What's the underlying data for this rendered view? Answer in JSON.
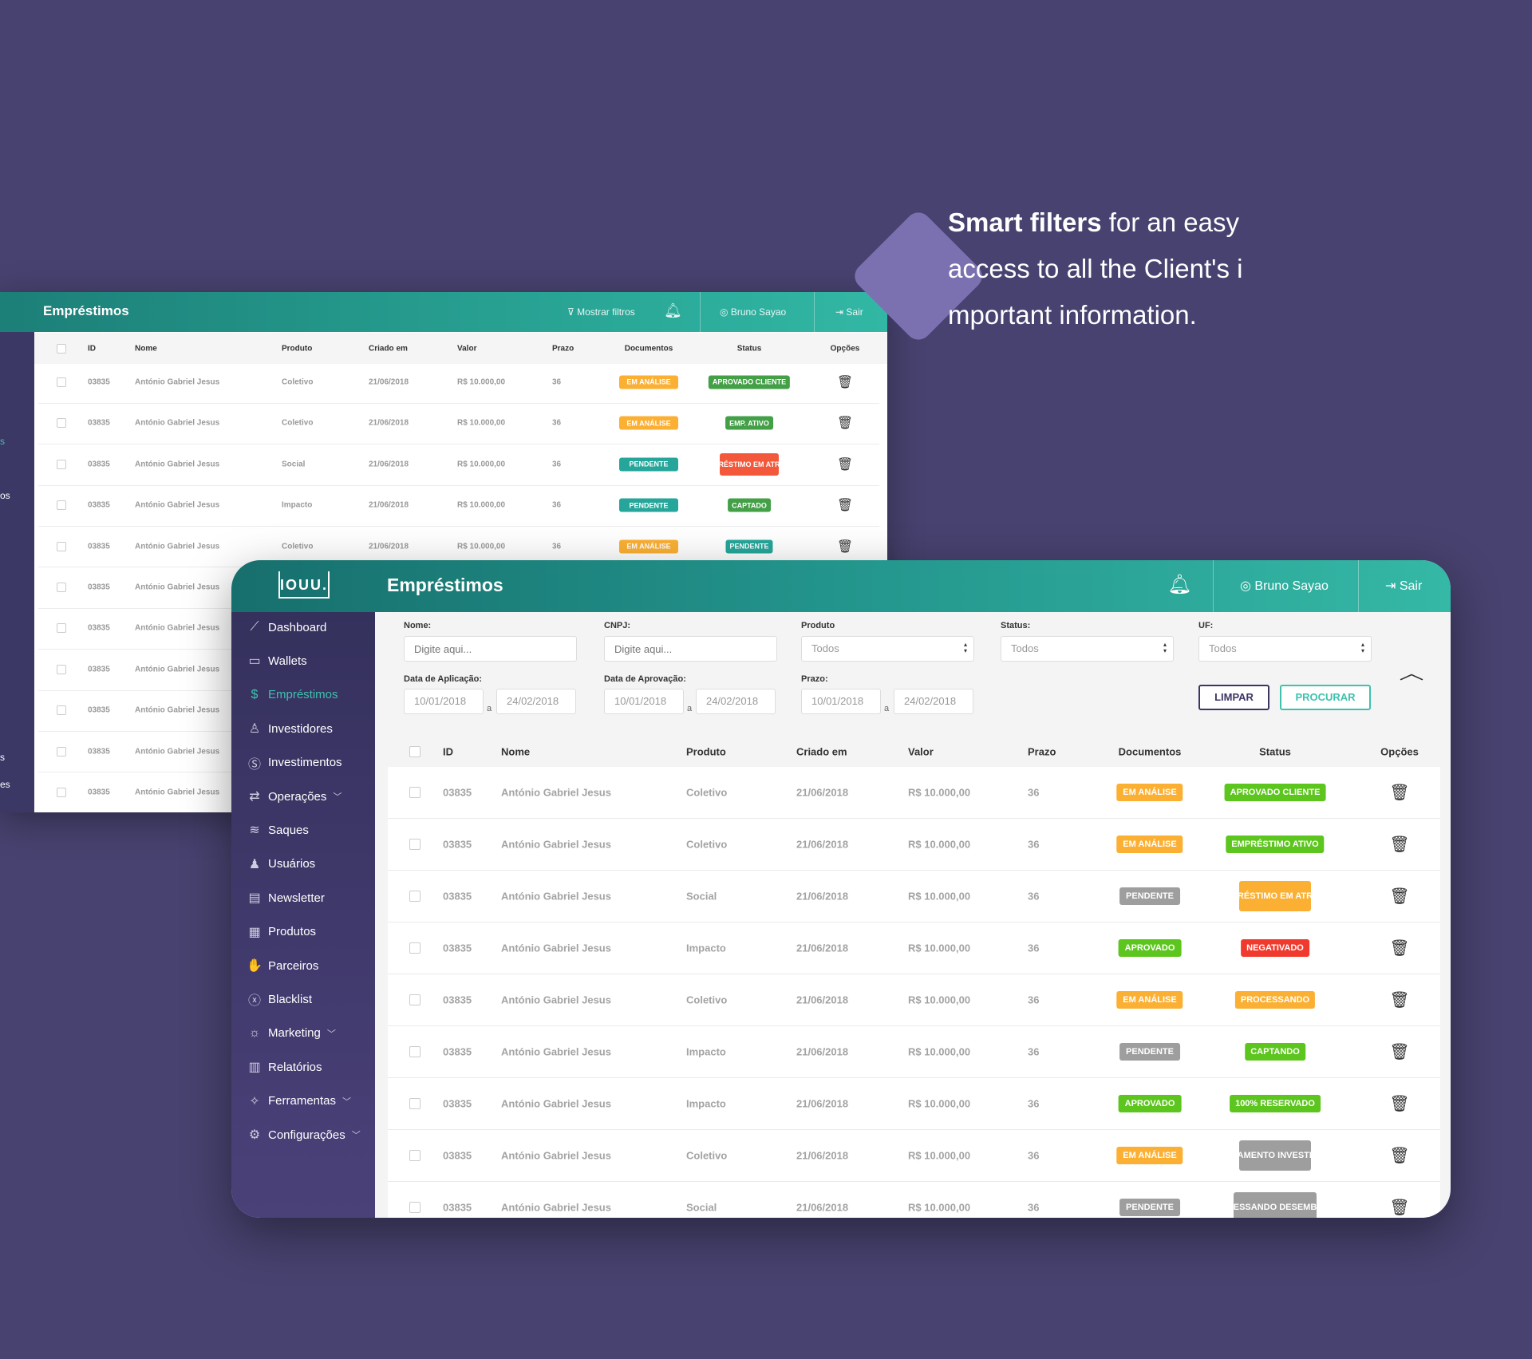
{
  "promo": {
    "bold": "Smart filters",
    "line1": " for an easy",
    "line2": "access to all the Client's i",
    "line3": "mportant information."
  },
  "colors": {
    "background": "#47426f",
    "teal": "#23958c",
    "orange": "#fbb034",
    "green": "#5cc51e",
    "gray": "#9e9e9e",
    "red": "#f03a2e",
    "accent": "#3ec2ad"
  },
  "back": {
    "title": "Empréstimos",
    "show_filters": "Mostrar filtros",
    "user": "Bruno Sayao",
    "logout": "Sair",
    "sidebar_fragments": [
      "s",
      "os",
      "s",
      "es"
    ],
    "columns": [
      "ID",
      "Nome",
      "Produto",
      "Criado em",
      "Valor",
      "Prazo",
      "Documentos",
      "Status",
      "Opções"
    ],
    "rows": [
      {
        "id": "03835",
        "nome": "António Gabriel Jesus",
        "produto": "Coletivo",
        "criado": "21/06/2018",
        "valor": "R$ 10.000,00",
        "prazo": "36",
        "doc": "EM ANÁLISE",
        "doc_color": "#fbb034",
        "status": "APROVADO CLIENTE",
        "status_color": "#43a047"
      },
      {
        "id": "03835",
        "nome": "António Gabriel Jesus",
        "produto": "Coletivo",
        "criado": "21/06/2018",
        "valor": "R$ 10.000,00",
        "prazo": "36",
        "doc": "EM ANÁLISE",
        "doc_color": "#fbb034",
        "status": "EMP. ATIVO",
        "status_color": "#43a047"
      },
      {
        "id": "03835",
        "nome": "António Gabriel Jesus",
        "produto": "Social",
        "criado": "21/06/2018",
        "valor": "R$ 10.000,00",
        "prazo": "36",
        "doc": "PENDENTE",
        "doc_color": "#26a69a",
        "status": "EMPRÉSTIMO EM ATRASO",
        "status_color": "#f4583a"
      },
      {
        "id": "03835",
        "nome": "António Gabriel Jesus",
        "produto": "Impacto",
        "criado": "21/06/2018",
        "valor": "R$ 10.000,00",
        "prazo": "36",
        "doc": "PENDENTE",
        "doc_color": "#26a69a",
        "status": "CAPTADO",
        "status_color": "#43a047"
      },
      {
        "id": "03835",
        "nome": "António Gabriel Jesus",
        "produto": "Coletivo",
        "criado": "21/06/2018",
        "valor": "R$ 10.000,00",
        "prazo": "36",
        "doc": "EM ANÁLISE",
        "doc_color": "#fbb034",
        "status": "PENDENTE",
        "status_color": "#26a69a"
      },
      {
        "id": "03835",
        "nome": "António Gabriel Jesus"
      },
      {
        "id": "03835",
        "nome": "António Gabriel Jesus"
      },
      {
        "id": "03835",
        "nome": "António Gabriel Jesus"
      },
      {
        "id": "03835",
        "nome": "António Gabriel Jesus"
      },
      {
        "id": "03835",
        "nome": "António Gabriel Jesus"
      },
      {
        "id": "03835",
        "nome": "António Gabriel Jesus"
      }
    ]
  },
  "front": {
    "logo": "IOUU.",
    "title": "Empréstimos",
    "user": "Bruno Sayao",
    "logout": "Sair",
    "sidebar": [
      {
        "label": "Dashboard",
        "icon": "chart-line-icon",
        "glyph": "⟋"
      },
      {
        "label": "Wallets",
        "icon": "wallet-icon",
        "glyph": "▭"
      },
      {
        "label": "Empréstimos",
        "icon": "loan-hand-icon",
        "glyph": "$",
        "active": true
      },
      {
        "label": "Investidores",
        "icon": "investor-icon",
        "glyph": "♙"
      },
      {
        "label": "Investimentos",
        "icon": "money-bag-icon",
        "glyph": "Ⓢ"
      },
      {
        "label": "Operações",
        "icon": "operations-icon",
        "glyph": "⇄",
        "chevron": true
      },
      {
        "label": "Saques",
        "icon": "layers-icon",
        "glyph": "≋"
      },
      {
        "label": "Usuários",
        "icon": "users-icon",
        "glyph": "♟"
      },
      {
        "label": "Newsletter",
        "icon": "newsletter-icon",
        "glyph": "▤"
      },
      {
        "label": "Produtos",
        "icon": "grid-icon",
        "glyph": "▦"
      },
      {
        "label": "Parceiros",
        "icon": "handshake-icon",
        "glyph": "✋"
      },
      {
        "label": "Blacklist",
        "icon": "x-circle-icon",
        "glyph": "ⓧ"
      },
      {
        "label": "Marketing",
        "icon": "lightbulb-icon",
        "glyph": "☼",
        "chevron": true
      },
      {
        "label": "Relatórios",
        "icon": "report-icon",
        "glyph": "▥"
      },
      {
        "label": "Ferramentas",
        "icon": "magic-wand-icon",
        "glyph": "✧",
        "chevron": true
      },
      {
        "label": "Configurações",
        "icon": "gears-icon",
        "glyph": "⚙",
        "chevron": true
      }
    ],
    "filters": {
      "nome": {
        "label": "Nome:",
        "placeholder": "Digite aqui..."
      },
      "cnpj": {
        "label": "CNPJ:",
        "placeholder": "Digite aqui..."
      },
      "produto": {
        "label": "Produto",
        "value": "Todos"
      },
      "status": {
        "label": "Status:",
        "value": "Todos"
      },
      "uf": {
        "label": "UF:",
        "value": "Todos"
      },
      "data_aplicacao": {
        "label": "Data de Aplicação:",
        "from": "10/01/2018",
        "to": "24/02/2018"
      },
      "data_aprovacao": {
        "label": "Data de Aprovação:",
        "from": "10/01/2018",
        "to": "24/02/2018"
      },
      "prazo": {
        "label": "Prazo:",
        "from": "10/01/2018",
        "to": "24/02/2018"
      },
      "sep": "a",
      "clear": "LIMPAR",
      "search": "PROCURAR"
    },
    "columns": [
      "ID",
      "Nome",
      "Produto",
      "Criado em",
      "Valor",
      "Prazo",
      "Documentos",
      "Status",
      "Opções"
    ],
    "rows": [
      {
        "id": "03835",
        "nome": "António Gabriel Jesus",
        "produto": "Coletivo",
        "criado": "21/06/2018",
        "valor": "R$ 10.000,00",
        "prazo": "36",
        "doc": "EM ANÁLISE",
        "doc_color": "#fbb034",
        "status": "APROVADO CLIENTE",
        "status_color": "#5cc51e"
      },
      {
        "id": "03835",
        "nome": "António Gabriel Jesus",
        "produto": "Coletivo",
        "criado": "21/06/2018",
        "valor": "R$ 10.000,00",
        "prazo": "36",
        "doc": "EM ANÁLISE",
        "doc_color": "#fbb034",
        "status": "EMPRÉSTIMO ATIVO",
        "status_color": "#5cc51e"
      },
      {
        "id": "03835",
        "nome": "António Gabriel Jesus",
        "produto": "Social",
        "criado": "21/06/2018",
        "valor": "R$ 10.000,00",
        "prazo": "36",
        "doc": "PENDENTE",
        "doc_color": "#9e9e9e",
        "status": "EMPRÉSTIMO EM ATRASO",
        "status_color": "#fbb034"
      },
      {
        "id": "03835",
        "nome": "António Gabriel Jesus",
        "produto": "Impacto",
        "criado": "21/06/2018",
        "valor": "R$ 10.000,00",
        "prazo": "36",
        "doc": "APROVADO",
        "doc_color": "#5cc51e",
        "status": "NEGATIVADO",
        "status_color": "#f03a2e"
      },
      {
        "id": "03835",
        "nome": "António Gabriel Jesus",
        "produto": "Coletivo",
        "criado": "21/06/2018",
        "valor": "R$ 10.000,00",
        "prazo": "36",
        "doc": "EM ANÁLISE",
        "doc_color": "#fbb034",
        "status": "PROCESSANDO",
        "status_color": "#fbb034"
      },
      {
        "id": "03835",
        "nome": "António Gabriel Jesus",
        "produto": "Impacto",
        "criado": "21/06/2018",
        "valor": "R$ 10.000,00",
        "prazo": "36",
        "doc": "PENDENTE",
        "doc_color": "#9e9e9e",
        "status": "CAPTANDO",
        "status_color": "#5cc51e"
      },
      {
        "id": "03835",
        "nome": "António Gabriel Jesus",
        "produto": "Impacto",
        "criado": "21/06/2018",
        "valor": "R$ 10.000,00",
        "prazo": "36",
        "doc": "APROVADO",
        "doc_color": "#5cc51e",
        "status": "100% RESERVADO",
        "status_color": "#5cc51e"
      },
      {
        "id": "03835",
        "nome": "António Gabriel Jesus",
        "produto": "Coletivo",
        "criado": "21/06/2018",
        "valor": "R$ 10.000,00",
        "prazo": "36",
        "doc": "EM ANÁLISE",
        "doc_color": "#fbb034",
        "status": "PAGAMENTO INVESTIDOR",
        "status_color": "#9e9e9e"
      },
      {
        "id": "03835",
        "nome": "António Gabriel Jesus",
        "produto": "Social",
        "criado": "21/06/2018",
        "valor": "R$ 10.000,00",
        "prazo": "36",
        "doc": "PENDENTE",
        "doc_color": "#9e9e9e",
        "status": "PROCESSANDO DESEMBOLDO",
        "status_color": "#9e9e9e"
      }
    ]
  }
}
